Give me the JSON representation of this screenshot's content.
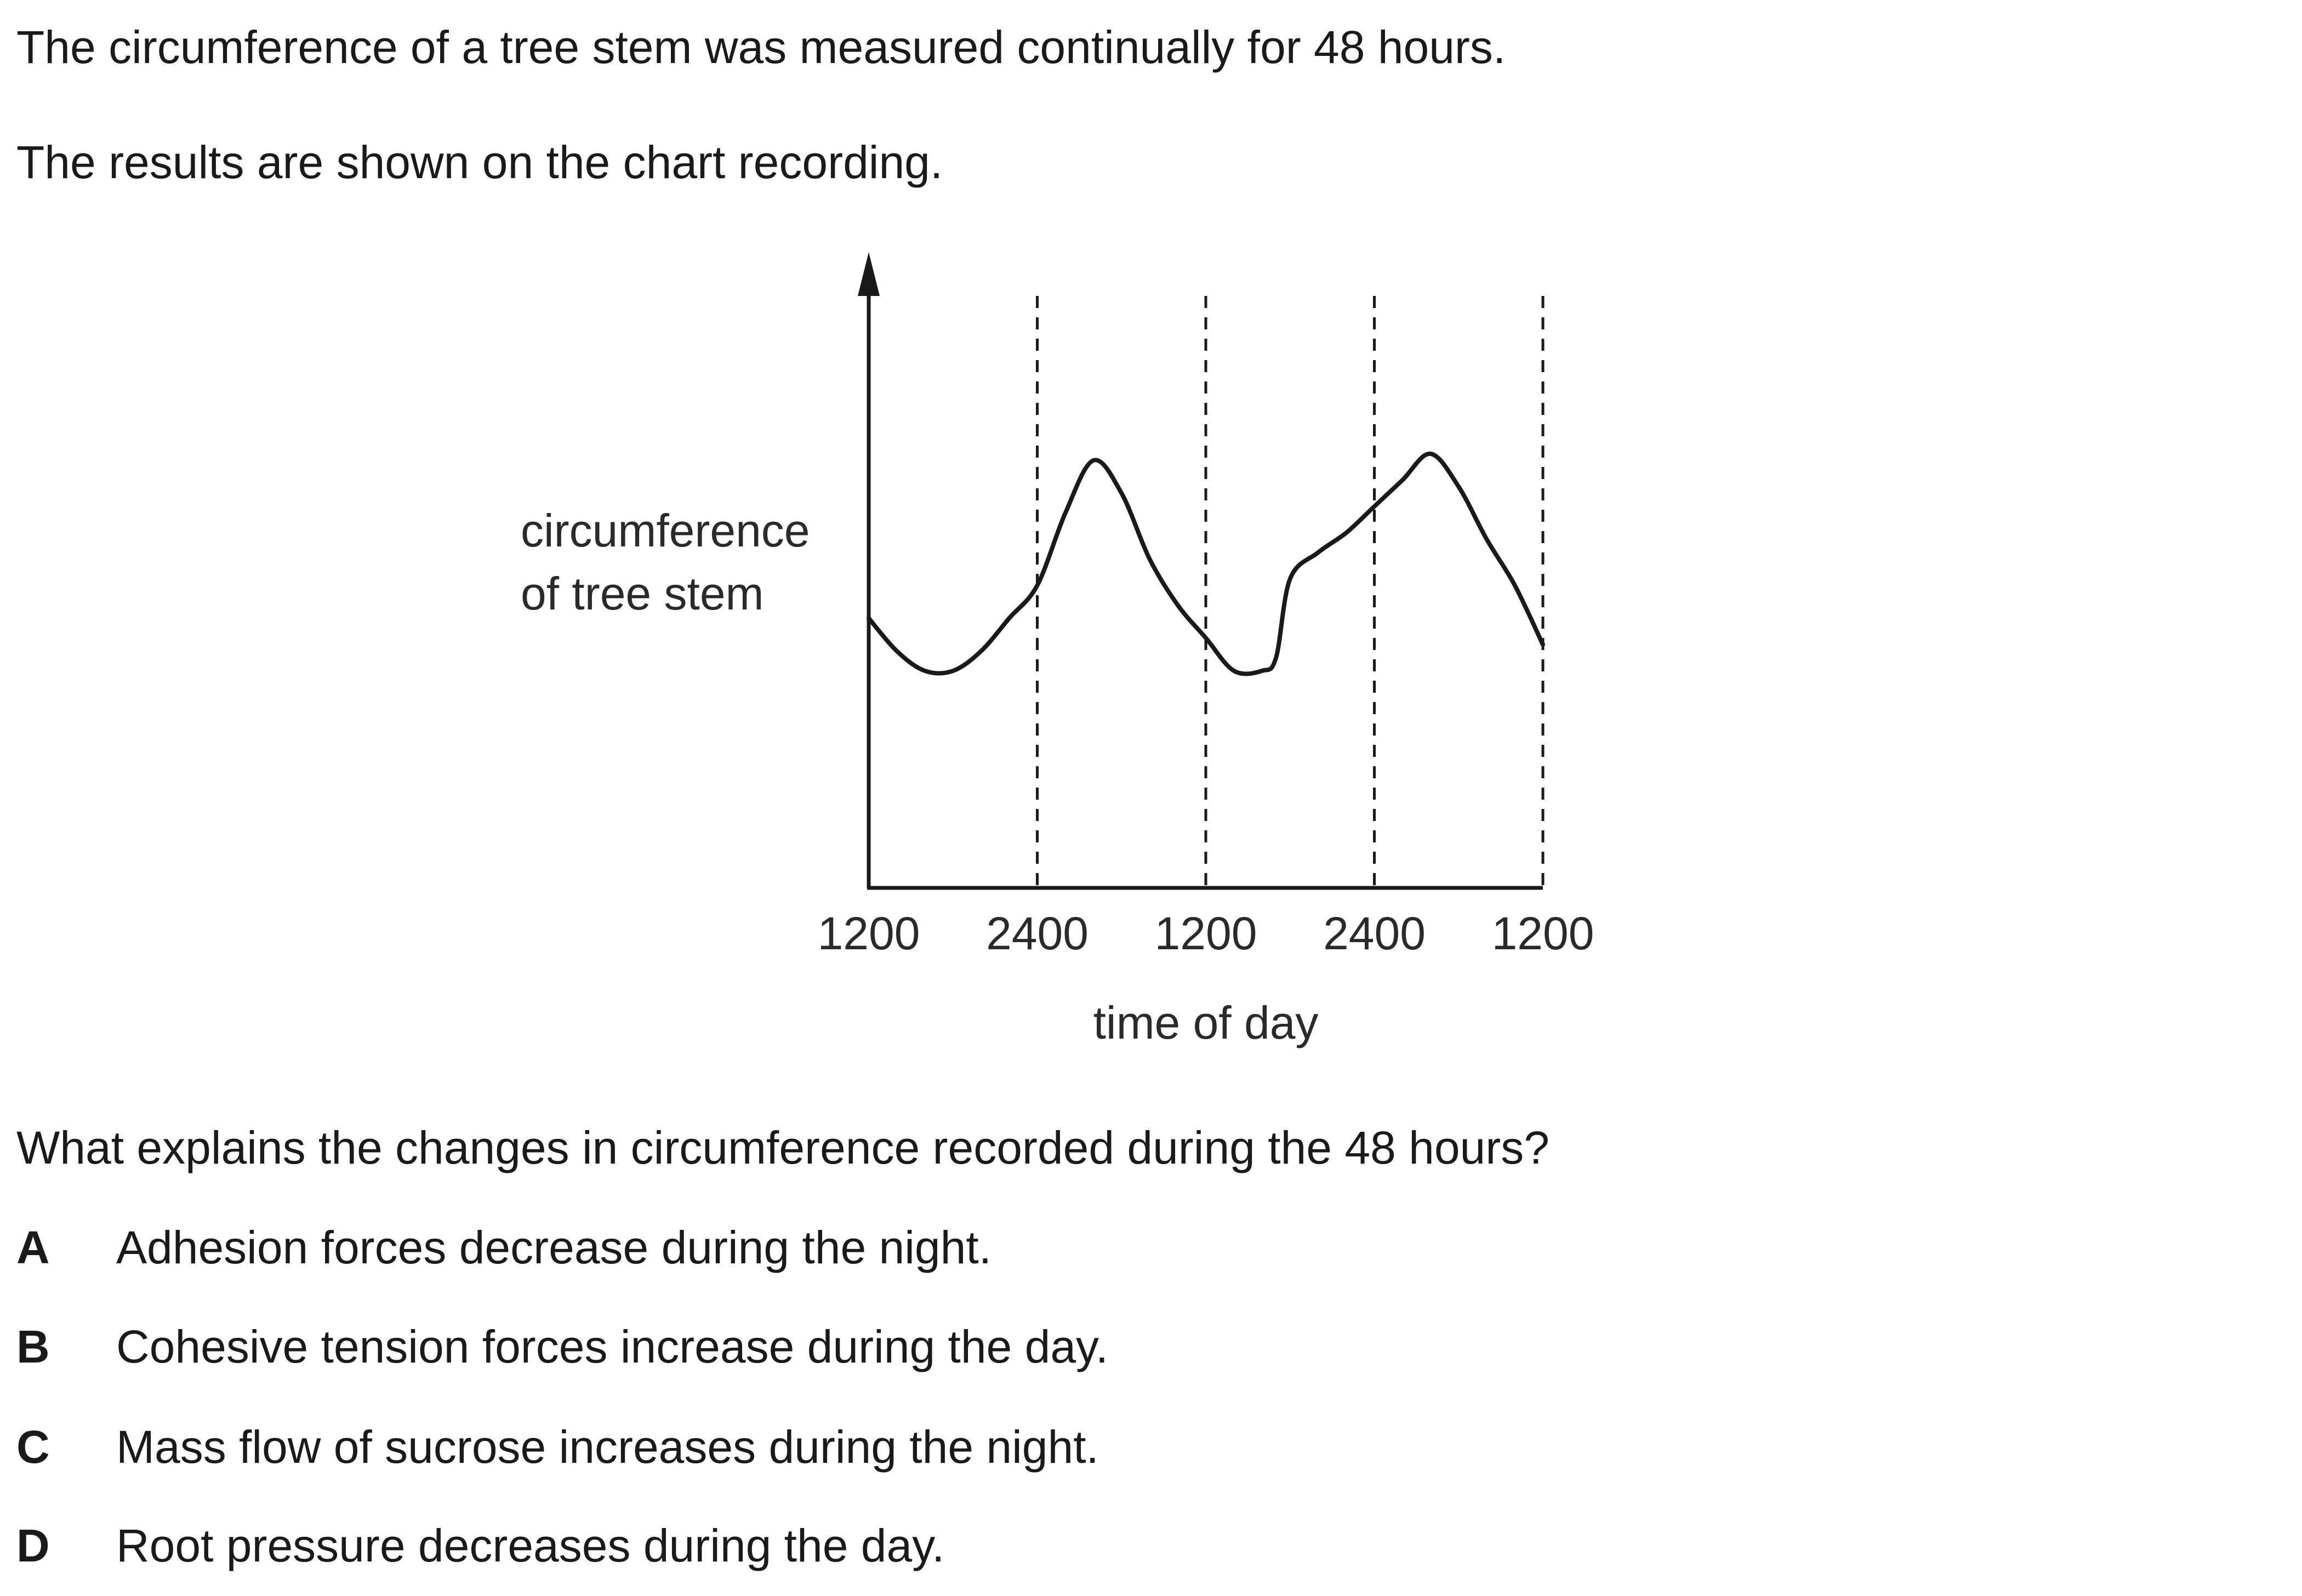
{
  "question": {
    "intro_1": "The circumference of a tree stem was measured continually for 48 hours.",
    "intro_2": "The results are shown on the chart recording.",
    "prompt": "What explains the changes in circumference recorded during the 48 hours?",
    "options": [
      {
        "letter": "A",
        "text": "Adhesion forces decrease during the night."
      },
      {
        "letter": "B",
        "text": "Cohesive tension forces increase during the day."
      },
      {
        "letter": "C",
        "text": "Mass flow of sucrose increases during the night."
      },
      {
        "letter": "D",
        "text": "Root pressure decreases during the day."
      }
    ]
  },
  "chart_data": {
    "type": "line",
    "title": "",
    "xlabel": "time of day",
    "ylabel_lines": [
      "circumference",
      "of tree stem"
    ],
    "x_tick_labels": [
      "1200",
      "2400",
      "1200",
      "2400",
      "1200"
    ],
    "x_tick_hours": [
      0,
      12,
      24,
      36,
      48
    ],
    "dashed_gridlines_at_hours": [
      12,
      24,
      36,
      48
    ],
    "xlim": [
      0,
      48
    ],
    "ylim": [
      0,
      10
    ],
    "y_axis_arrow": true,
    "series": [
      {
        "x": [
          0,
          2,
          4,
          6,
          8,
          10,
          12,
          14,
          16,
          18,
          20,
          22,
          24,
          26,
          28,
          29,
          30,
          32,
          34,
          36,
          38,
          40,
          42,
          44,
          46,
          48
        ],
        "y": [
          4.1,
          3.6,
          3.3,
          3.3,
          3.6,
          4.1,
          4.6,
          5.7,
          6.5,
          6.0,
          5.0,
          4.3,
          3.8,
          3.3,
          3.3,
          3.5,
          4.7,
          5.1,
          5.4,
          5.8,
          6.2,
          6.6,
          6.1,
          5.3,
          4.6,
          3.7
        ]
      }
    ]
  }
}
